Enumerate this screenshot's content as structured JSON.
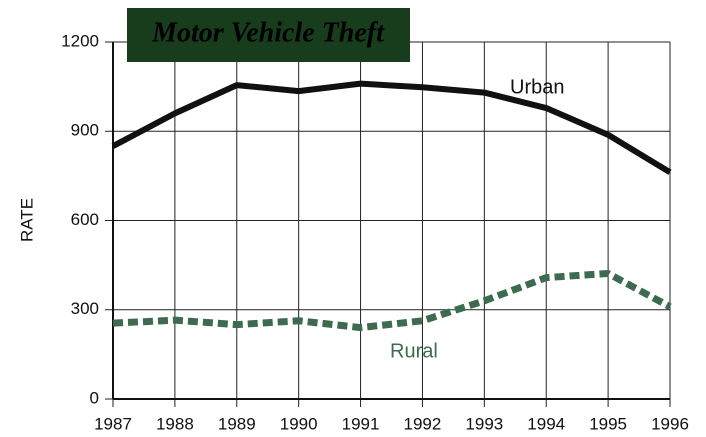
{
  "chart_data": {
    "type": "line",
    "title": "Motor Vehicle Theft",
    "y_label": "RATE",
    "x": [
      1987,
      1988,
      1989,
      1990,
      1991,
      1992,
      1993,
      1994,
      1995,
      1996
    ],
    "xlim": [
      1987,
      1996
    ],
    "xticks": [
      1987,
      1988,
      1989,
      1990,
      1991,
      1992,
      1993,
      1994,
      1995,
      1996
    ],
    "ylim": [
      0,
      1200
    ],
    "yticks": [
      0,
      300,
      600,
      900,
      1200
    ],
    "grid": true,
    "series": [
      {
        "name": "Urban",
        "color": "#111111",
        "style": "solid",
        "values": [
          850,
          960,
          1055,
          1035,
          1060,
          1048,
          1030,
          978,
          888,
          762
        ]
      },
      {
        "name": "Rural",
        "color": "#3d6b4f",
        "style": "dashed",
        "values": [
          255,
          265,
          250,
          263,
          240,
          263,
          330,
          408,
          422,
          310
        ]
      }
    ]
  }
}
